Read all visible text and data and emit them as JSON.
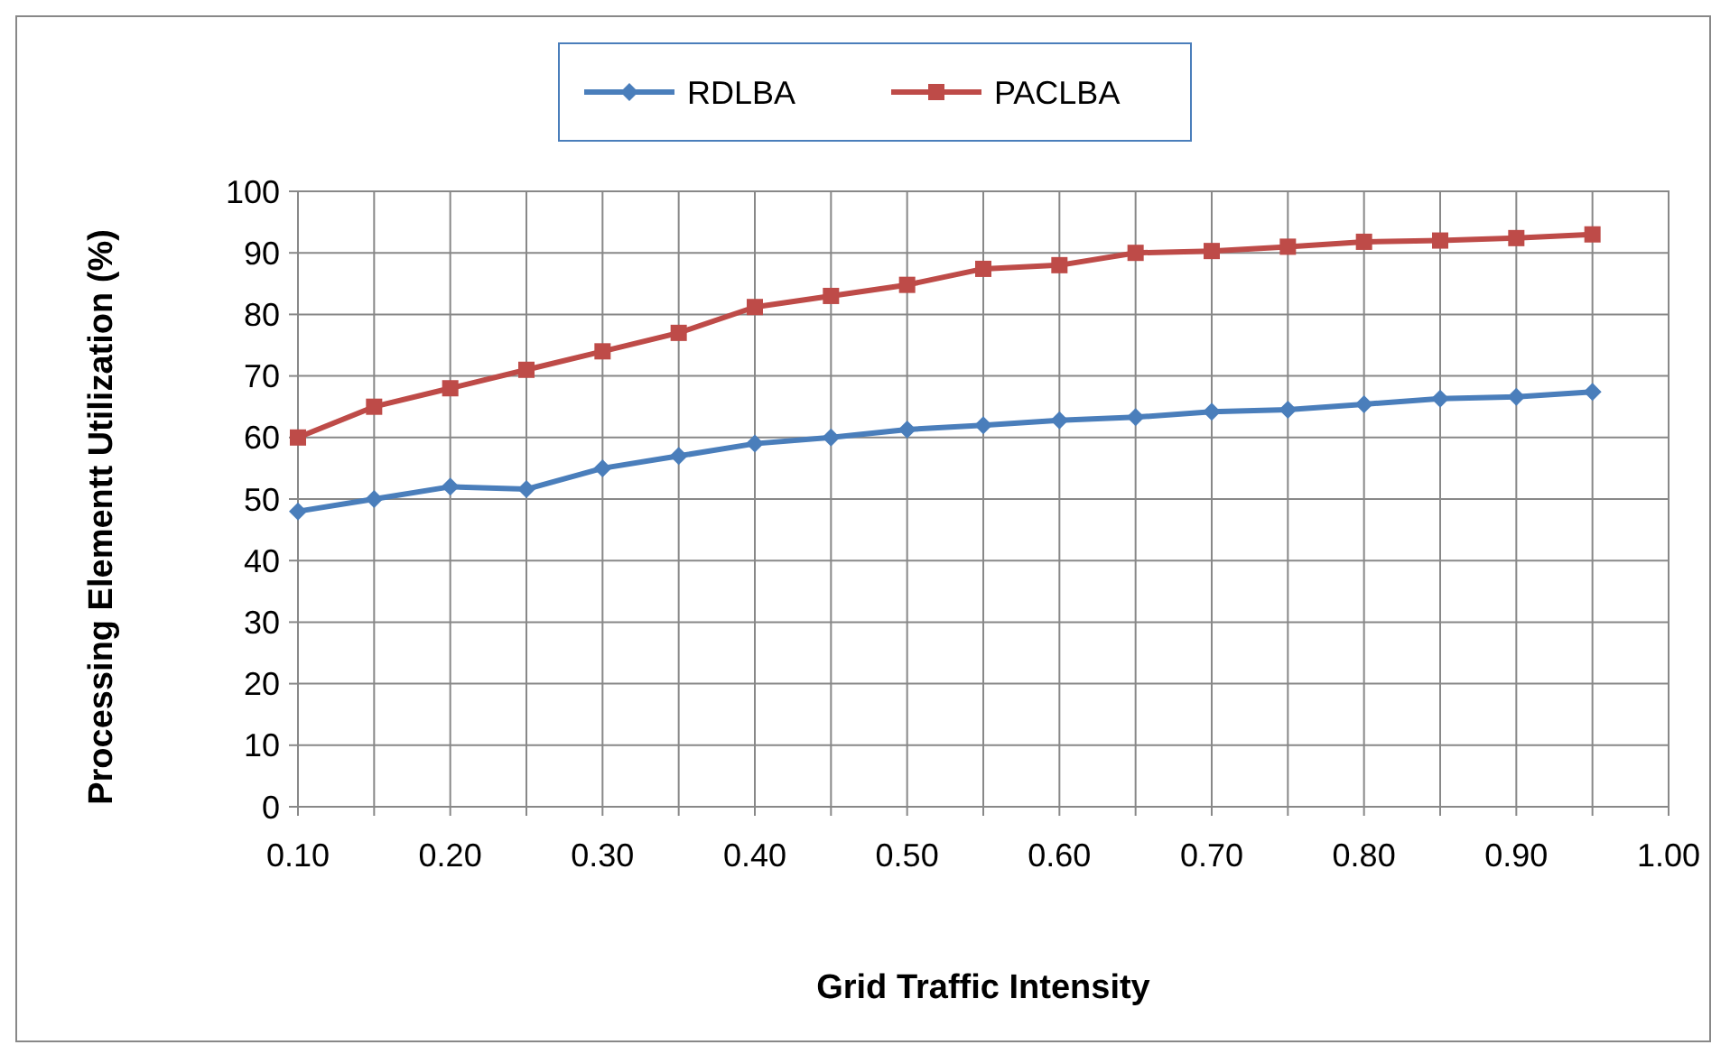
{
  "chart_data": {
    "type": "line",
    "xlabel": "Grid Traffic Intensity",
    "ylabel": "Processing Elementt Utilization (%)",
    "x": [
      0.1,
      0.15,
      0.2,
      0.25,
      0.3,
      0.35,
      0.4,
      0.45,
      0.5,
      0.55,
      0.6,
      0.65,
      0.7,
      0.75,
      0.8,
      0.85,
      0.9,
      0.95
    ],
    "series": [
      {
        "name": "RDLBA",
        "color": "#4a7ebb",
        "marker": "diamond",
        "values": [
          48,
          50,
          52,
          51.6,
          55,
          57,
          59,
          60,
          61.3,
          62,
          62.8,
          63.3,
          64.2,
          64.5,
          65.4,
          66.3,
          66.6,
          67.4
        ]
      },
      {
        "name": "PACLBA",
        "color": "#be4b48",
        "marker": "square",
        "values": [
          60,
          65,
          68,
          71,
          74,
          77,
          81.2,
          83,
          84.8,
          87.4,
          88,
          90,
          90.3,
          91,
          91.8,
          92,
          92.4,
          93
        ]
      }
    ],
    "xlim": [
      0.1,
      1.0
    ],
    "xticks": [
      {
        "value": 0.1,
        "label": "0.10"
      },
      {
        "value": 0.15,
        "label": null
      },
      {
        "value": 0.2,
        "label": "0.20"
      },
      {
        "value": 0.25,
        "label": null
      },
      {
        "value": 0.3,
        "label": "0.30"
      },
      {
        "value": 0.35,
        "label": null
      },
      {
        "value": 0.4,
        "label": "0.40"
      },
      {
        "value": 0.45,
        "label": null
      },
      {
        "value": 0.5,
        "label": "0.50"
      },
      {
        "value": 0.55,
        "label": null
      },
      {
        "value": 0.6,
        "label": "0.60"
      },
      {
        "value": 0.65,
        "label": null
      },
      {
        "value": 0.7,
        "label": "0.70"
      },
      {
        "value": 0.75,
        "label": null
      },
      {
        "value": 0.8,
        "label": "0.80"
      },
      {
        "value": 0.85,
        "label": null
      },
      {
        "value": 0.9,
        "label": "0.90"
      },
      {
        "value": 0.95,
        "label": null
      },
      {
        "value": 1.0,
        "label": "1.00"
      }
    ],
    "ylim": [
      0,
      100
    ],
    "yticks": [
      0,
      10,
      20,
      30,
      40,
      50,
      60,
      70,
      80,
      90,
      100
    ],
    "grid": true,
    "legend": "top",
    "line_style": "solid"
  }
}
